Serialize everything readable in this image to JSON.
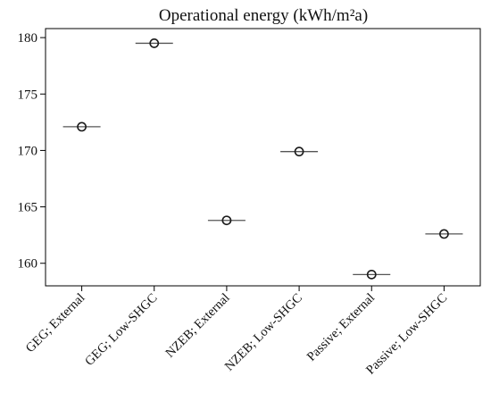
{
  "chart_data": {
    "type": "scatter",
    "title": "Operational energy (kWh/m²a)",
    "xlabel": "",
    "ylabel": "",
    "categories": [
      "GEG; External",
      "GEG; Low-SHGC",
      "NZEB; External",
      "NZEB; Low-SHGC",
      "Passive; External",
      "Passive; Low-SHGC"
    ],
    "values": [
      172.1,
      179.5,
      163.8,
      169.9,
      159.0,
      162.6
    ],
    "ylim": [
      158,
      180.8
    ],
    "yticks": [
      160,
      165,
      170,
      175,
      180
    ],
    "grid": false,
    "legend": "none",
    "marker": "open-circle-with-median-line",
    "colors": {
      "marker_edge": "#1a1a1a",
      "median_line": "#555555",
      "axis": "#000000"
    }
  }
}
